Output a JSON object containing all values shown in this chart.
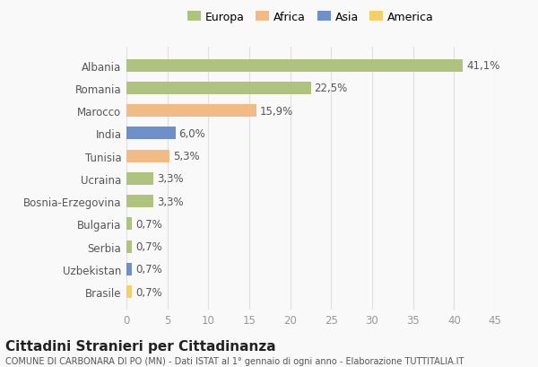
{
  "countries": [
    "Albania",
    "Romania",
    "Marocco",
    "India",
    "Tunisia",
    "Ucraina",
    "Bosnia-Erzegovina",
    "Bulgaria",
    "Serbia",
    "Uzbekistan",
    "Brasile"
  ],
  "values": [
    41.1,
    22.5,
    15.9,
    6.0,
    5.3,
    3.3,
    3.3,
    0.7,
    0.7,
    0.7,
    0.7
  ],
  "labels": [
    "41,1%",
    "22,5%",
    "15,9%",
    "6,0%",
    "5,3%",
    "3,3%",
    "3,3%",
    "0,7%",
    "0,7%",
    "0,7%",
    "0,7%"
  ],
  "colors": [
    "#aec47e",
    "#aec47e",
    "#f2bb85",
    "#6e8fc7",
    "#f2bb85",
    "#aec47e",
    "#aec47e",
    "#aec47e",
    "#aec47e",
    "#6e8fc7",
    "#f5d06a"
  ],
  "legend_labels": [
    "Europa",
    "Africa",
    "Asia",
    "America"
  ],
  "legend_colors": [
    "#aec47e",
    "#f2bb85",
    "#6e8fc7",
    "#f5d06a"
  ],
  "xlim": [
    0,
    45
  ],
  "xticks": [
    0,
    5,
    10,
    15,
    20,
    25,
    30,
    35,
    40,
    45
  ],
  "title": "Cittadini Stranieri per Cittadinanza",
  "subtitle": "COMUNE DI CARBONARA DI PO (MN) - Dati ISTAT al 1° gennaio di ogni anno - Elaborazione TUTTITALIA.IT",
  "bg_color": "#f9f9f9",
  "grid_color": "#e0e0e0",
  "bar_height": 0.55,
  "label_fontsize": 8.5,
  "tick_fontsize": 8.5,
  "title_fontsize": 11,
  "subtitle_fontsize": 7
}
